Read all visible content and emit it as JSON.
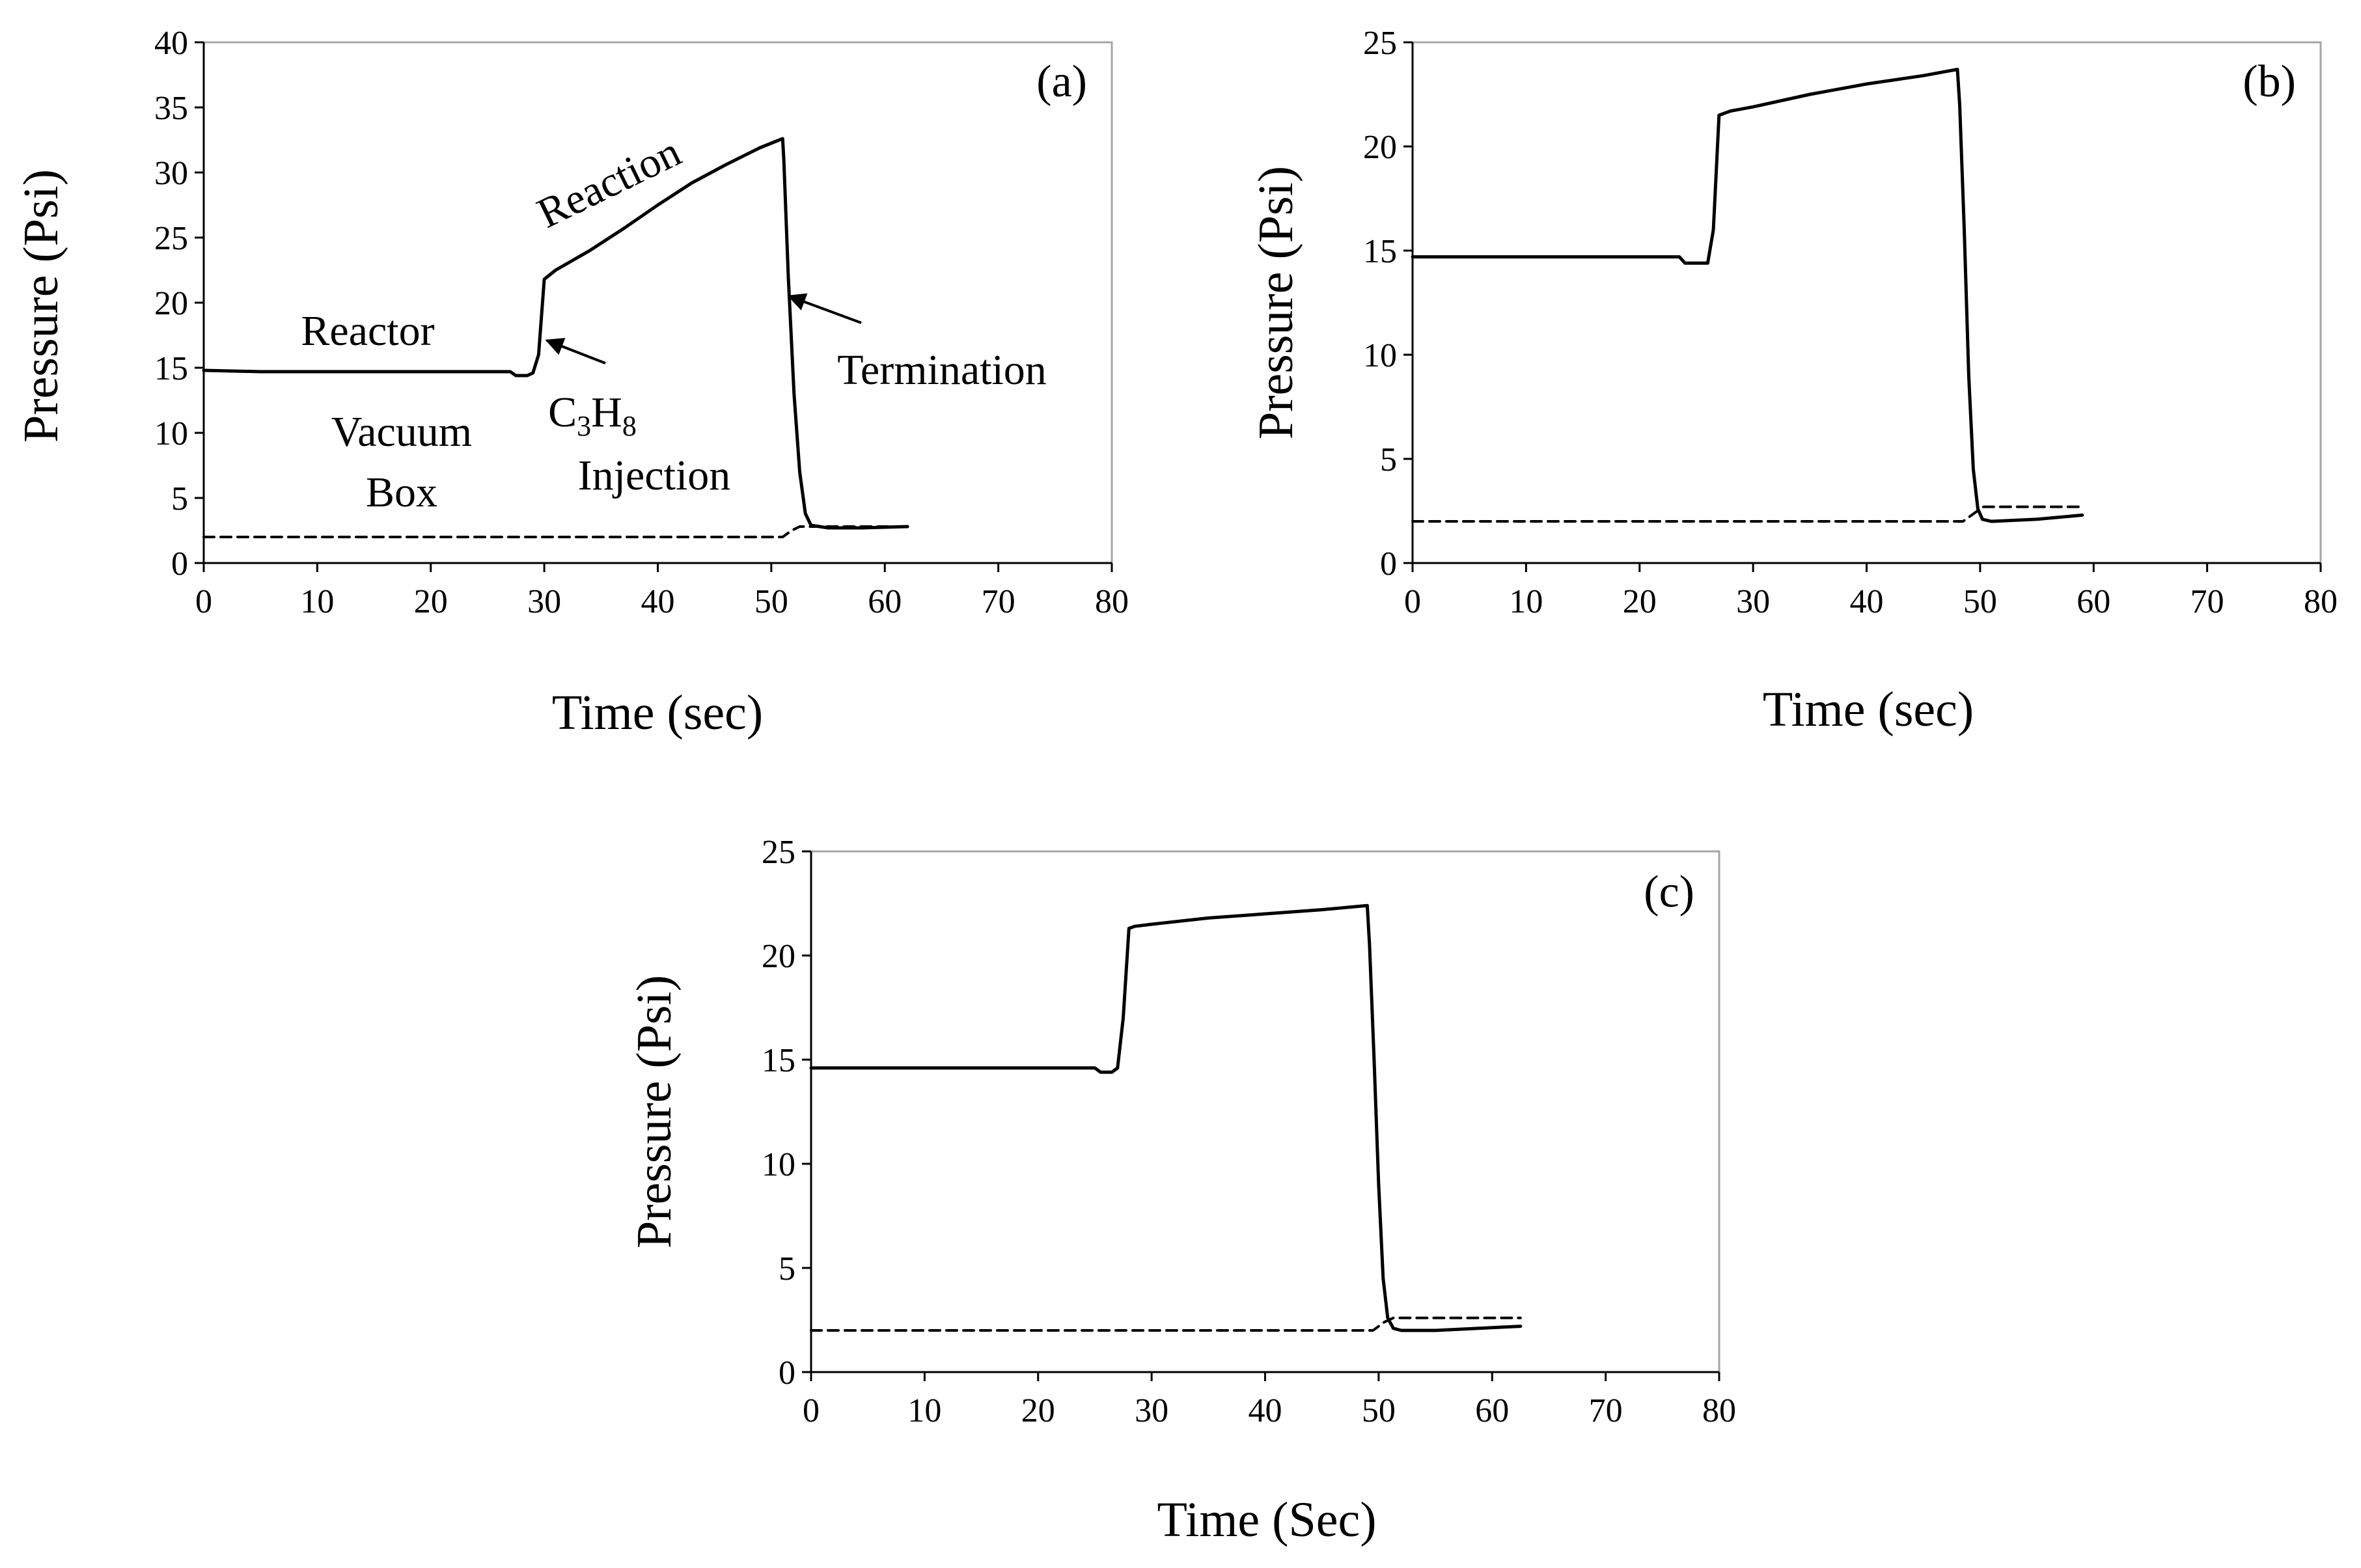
{
  "chart_data": [
    {
      "type": "line",
      "panel_label": "(a)",
      "xlabel": "Time (sec)",
      "ylabel": "Pressure (Psi)",
      "xlim": [
        0,
        80
      ],
      "ylim": [
        0,
        40
      ],
      "xticks": [
        0,
        10,
        20,
        30,
        40,
        50,
        60,
        70,
        80
      ],
      "yticks": [
        0,
        5,
        10,
        15,
        20,
        25,
        30,
        35,
        40
      ],
      "grid": false,
      "series": [
        {
          "name": "Reactor",
          "style": "solid",
          "x": [
            0,
            5,
            10,
            15,
            20,
            25,
            27,
            27.5,
            28.5,
            29,
            29.5,
            30,
            31,
            34,
            37,
            40,
            43,
            46,
            49,
            51,
            51.1,
            51.5,
            52,
            52.5,
            53,
            53.5,
            55,
            58,
            62
          ],
          "y": [
            14.8,
            14.7,
            14.7,
            14.7,
            14.7,
            14.7,
            14.7,
            14.4,
            14.4,
            14.6,
            16,
            21.8,
            22.5,
            24,
            25.7,
            27.5,
            29.2,
            30.6,
            31.9,
            32.6,
            31,
            22,
            13,
            7,
            3.8,
            2.9,
            2.7,
            2.7,
            2.8
          ]
        },
        {
          "name": "Vacuum Box",
          "style": "dashed",
          "x": [
            0,
            10,
            20,
            30,
            40,
            50,
            51,
            51.8,
            52.5,
            55,
            60,
            62
          ],
          "y": [
            2,
            2,
            2,
            2,
            2,
            2,
            2,
            2.5,
            2.8,
            2.8,
            2.8,
            2.8
          ]
        }
      ],
      "annotations": [
        {
          "text": "Reactor"
        },
        {
          "text": "Reaction"
        },
        {
          "text": "Termination"
        },
        {
          "text": "Vacuum"
        },
        {
          "text": "Box"
        },
        {
          "text_main": "C",
          "text_sub": "3",
          "text_main2": "H",
          "text_sub2": "8"
        },
        {
          "text": "Injection"
        }
      ]
    },
    {
      "type": "line",
      "panel_label": "(b)",
      "xlabel": "Time (sec)",
      "ylabel": "Pressure (Psi)",
      "xlim": [
        0,
        80
      ],
      "ylim": [
        0,
        25
      ],
      "xticks": [
        0,
        10,
        20,
        30,
        40,
        50,
        60,
        70,
        80
      ],
      "yticks": [
        0,
        5,
        10,
        15,
        20,
        25
      ],
      "grid": false,
      "series": [
        {
          "name": "Reactor",
          "style": "solid",
          "x": [
            0,
            10,
            20,
            23.5,
            24,
            25,
            26,
            26.5,
            27,
            27.5,
            28,
            30,
            35,
            40,
            45,
            48,
            48.2,
            48.6,
            49,
            49.4,
            49.8,
            50.2,
            51,
            55,
            59
          ],
          "y": [
            14.7,
            14.7,
            14.7,
            14.7,
            14.4,
            14.4,
            14.4,
            16,
            21.5,
            21.6,
            21.7,
            21.9,
            22.5,
            23,
            23.4,
            23.7,
            22,
            16,
            9,
            4.5,
            2.6,
            2.1,
            2.0,
            2.1,
            2.3
          ]
        },
        {
          "name": "Vacuum Box",
          "style": "dashed",
          "x": [
            0,
            10,
            20,
            30,
            40,
            48.5,
            49.5,
            50.3,
            55,
            59
          ],
          "y": [
            2,
            2,
            2,
            2,
            2,
            2,
            2.4,
            2.7,
            2.7,
            2.7
          ]
        }
      ]
    },
    {
      "type": "line",
      "panel_label": "(c)",
      "xlabel": "Time (Sec)",
      "ylabel": "Pressure (Psi)",
      "xlim": [
        0,
        80
      ],
      "ylim": [
        0,
        25
      ],
      "xticks": [
        0,
        10,
        20,
        30,
        40,
        50,
        60,
        70,
        80
      ],
      "yticks": [
        0,
        5,
        10,
        15,
        20,
        25
      ],
      "grid": false,
      "series": [
        {
          "name": "Reactor",
          "style": "solid",
          "x": [
            0,
            10,
            20,
            25,
            25.5,
            26.5,
            27,
            27.5,
            28,
            28.5,
            30,
            35,
            40,
            45,
            49,
            49.2,
            49.6,
            50,
            50.4,
            50.8,
            51.3,
            52,
            55,
            62.5
          ],
          "y": [
            14.6,
            14.6,
            14.6,
            14.6,
            14.4,
            14.4,
            14.6,
            17,
            21.3,
            21.4,
            21.5,
            21.8,
            22,
            22.2,
            22.4,
            20.5,
            15,
            9,
            4.5,
            2.6,
            2.1,
            2.0,
            2.0,
            2.2
          ]
        },
        {
          "name": "Vacuum Box",
          "style": "dashed",
          "x": [
            0,
            10,
            20,
            30,
            40,
            49.5,
            50.5,
            51.3,
            55,
            62.5
          ],
          "y": [
            2,
            2,
            2,
            2,
            2,
            2,
            2.4,
            2.6,
            2.6,
            2.6
          ]
        }
      ]
    }
  ]
}
